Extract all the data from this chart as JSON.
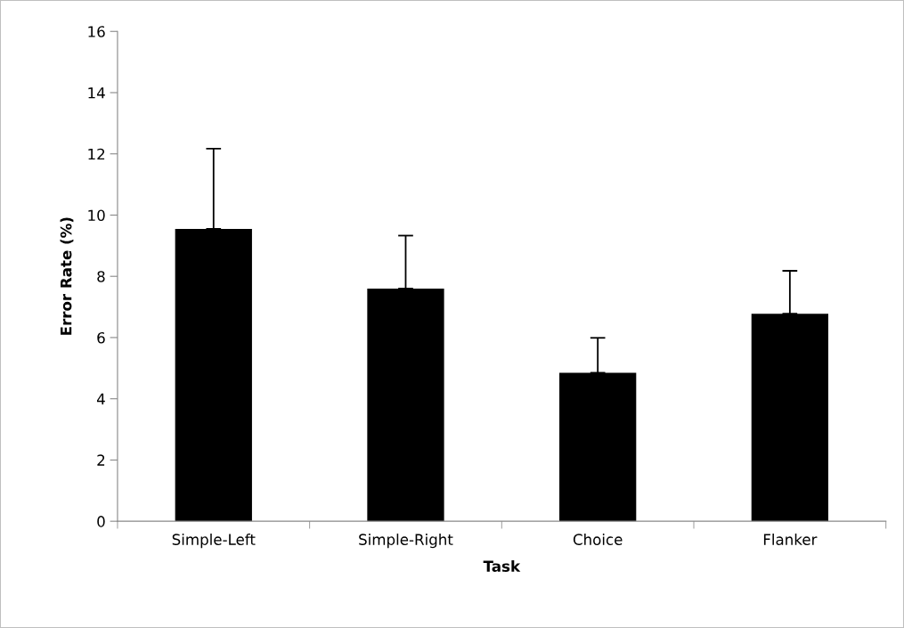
{
  "chart_data": {
    "type": "bar",
    "xlabel": "Task",
    "ylabel": "Error Rate (%)",
    "categories": [
      "Simple-Left",
      "Simple-Right",
      "Choice",
      "Flanker"
    ],
    "values": [
      9.55,
      7.6,
      4.85,
      6.78
    ],
    "errors": [
      [
        9.55,
        12.17
      ],
      [
        7.6,
        9.33
      ],
      [
        4.85,
        5.99
      ],
      [
        6.78,
        8.18
      ]
    ],
    "color": "#000000",
    "ylim": [
      0,
      16
    ],
    "yticks": [
      0,
      2,
      4,
      6,
      8,
      10,
      12,
      14,
      16
    ],
    "grid": false,
    "legend": false
  }
}
